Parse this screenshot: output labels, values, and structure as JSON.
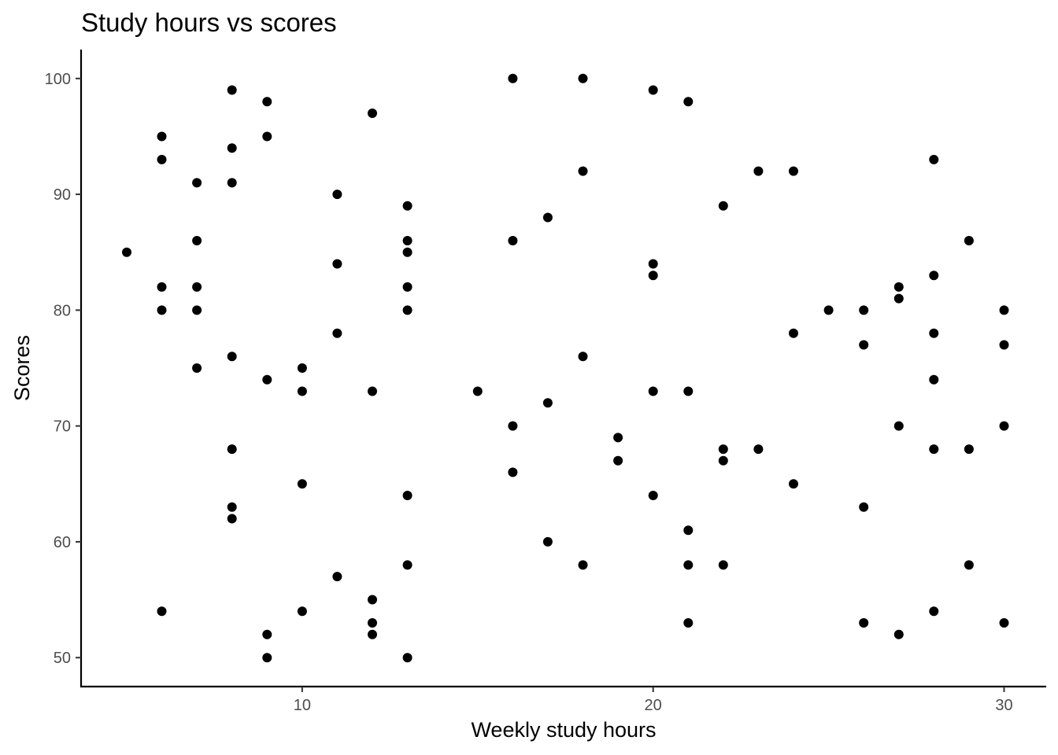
{
  "chart_data": {
    "type": "scatter",
    "title": "Study hours vs scores",
    "xlabel": "Weekly study hours",
    "ylabel": "Scores",
    "xlim": [
      3.7,
      31.2
    ],
    "ylim": [
      47.5,
      102.5
    ],
    "xticks": [
      10,
      20,
      30
    ],
    "yticks": [
      50,
      60,
      70,
      80,
      90,
      100
    ],
    "grid": false,
    "point_color": "#000000",
    "points": [
      [
        5,
        85
      ],
      [
        6,
        95
      ],
      [
        6,
        93
      ],
      [
        6,
        82
      ],
      [
        6,
        80
      ],
      [
        6,
        54
      ],
      [
        7,
        91
      ],
      [
        7,
        86
      ],
      [
        7,
        82
      ],
      [
        7,
        80
      ],
      [
        7,
        75
      ],
      [
        8,
        99
      ],
      [
        8,
        94
      ],
      [
        8,
        91
      ],
      [
        8,
        76
      ],
      [
        8,
        68
      ],
      [
        8,
        63
      ],
      [
        8,
        62
      ],
      [
        9,
        98
      ],
      [
        9,
        95
      ],
      [
        9,
        74
      ],
      [
        9,
        52
      ],
      [
        9,
        50
      ],
      [
        10,
        75
      ],
      [
        10,
        73
      ],
      [
        10,
        65
      ],
      [
        10,
        54
      ],
      [
        11,
        90
      ],
      [
        11,
        84
      ],
      [
        11,
        78
      ],
      [
        11,
        57
      ],
      [
        12,
        97
      ],
      [
        12,
        73
      ],
      [
        12,
        55
      ],
      [
        12,
        53
      ],
      [
        12,
        52
      ],
      [
        13,
        89
      ],
      [
        13,
        86
      ],
      [
        13,
        85
      ],
      [
        13,
        82
      ],
      [
        13,
        80
      ],
      [
        13,
        64
      ],
      [
        13,
        58
      ],
      [
        13,
        50
      ],
      [
        15,
        73
      ],
      [
        16,
        100
      ],
      [
        16,
        86
      ],
      [
        16,
        70
      ],
      [
        16,
        66
      ],
      [
        17,
        88
      ],
      [
        17,
        72
      ],
      [
        17,
        60
      ],
      [
        18,
        100
      ],
      [
        18,
        92
      ],
      [
        18,
        76
      ],
      [
        18,
        58
      ],
      [
        19,
        69
      ],
      [
        19,
        67
      ],
      [
        20,
        99
      ],
      [
        20,
        84
      ],
      [
        20,
        83
      ],
      [
        20,
        73
      ],
      [
        20,
        64
      ],
      [
        21,
        98
      ],
      [
        21,
        73
      ],
      [
        21,
        61
      ],
      [
        21,
        58
      ],
      [
        21,
        53
      ],
      [
        22,
        89
      ],
      [
        22,
        68
      ],
      [
        22,
        67
      ],
      [
        22,
        58
      ],
      [
        23,
        92
      ],
      [
        23,
        68
      ],
      [
        24,
        92
      ],
      [
        24,
        78
      ],
      [
        24,
        65
      ],
      [
        25,
        80
      ],
      [
        26,
        80
      ],
      [
        26,
        77
      ],
      [
        26,
        63
      ],
      [
        26,
        53
      ],
      [
        27,
        82
      ],
      [
        27,
        81
      ],
      [
        27,
        70
      ],
      [
        27,
        52
      ],
      [
        28,
        93
      ],
      [
        28,
        83
      ],
      [
        28,
        78
      ],
      [
        28,
        74
      ],
      [
        28,
        68
      ],
      [
        28,
        54
      ],
      [
        29,
        86
      ],
      [
        29,
        68
      ],
      [
        29,
        58
      ],
      [
        30,
        80
      ],
      [
        30,
        77
      ],
      [
        30,
        70
      ],
      [
        30,
        53
      ]
    ]
  }
}
